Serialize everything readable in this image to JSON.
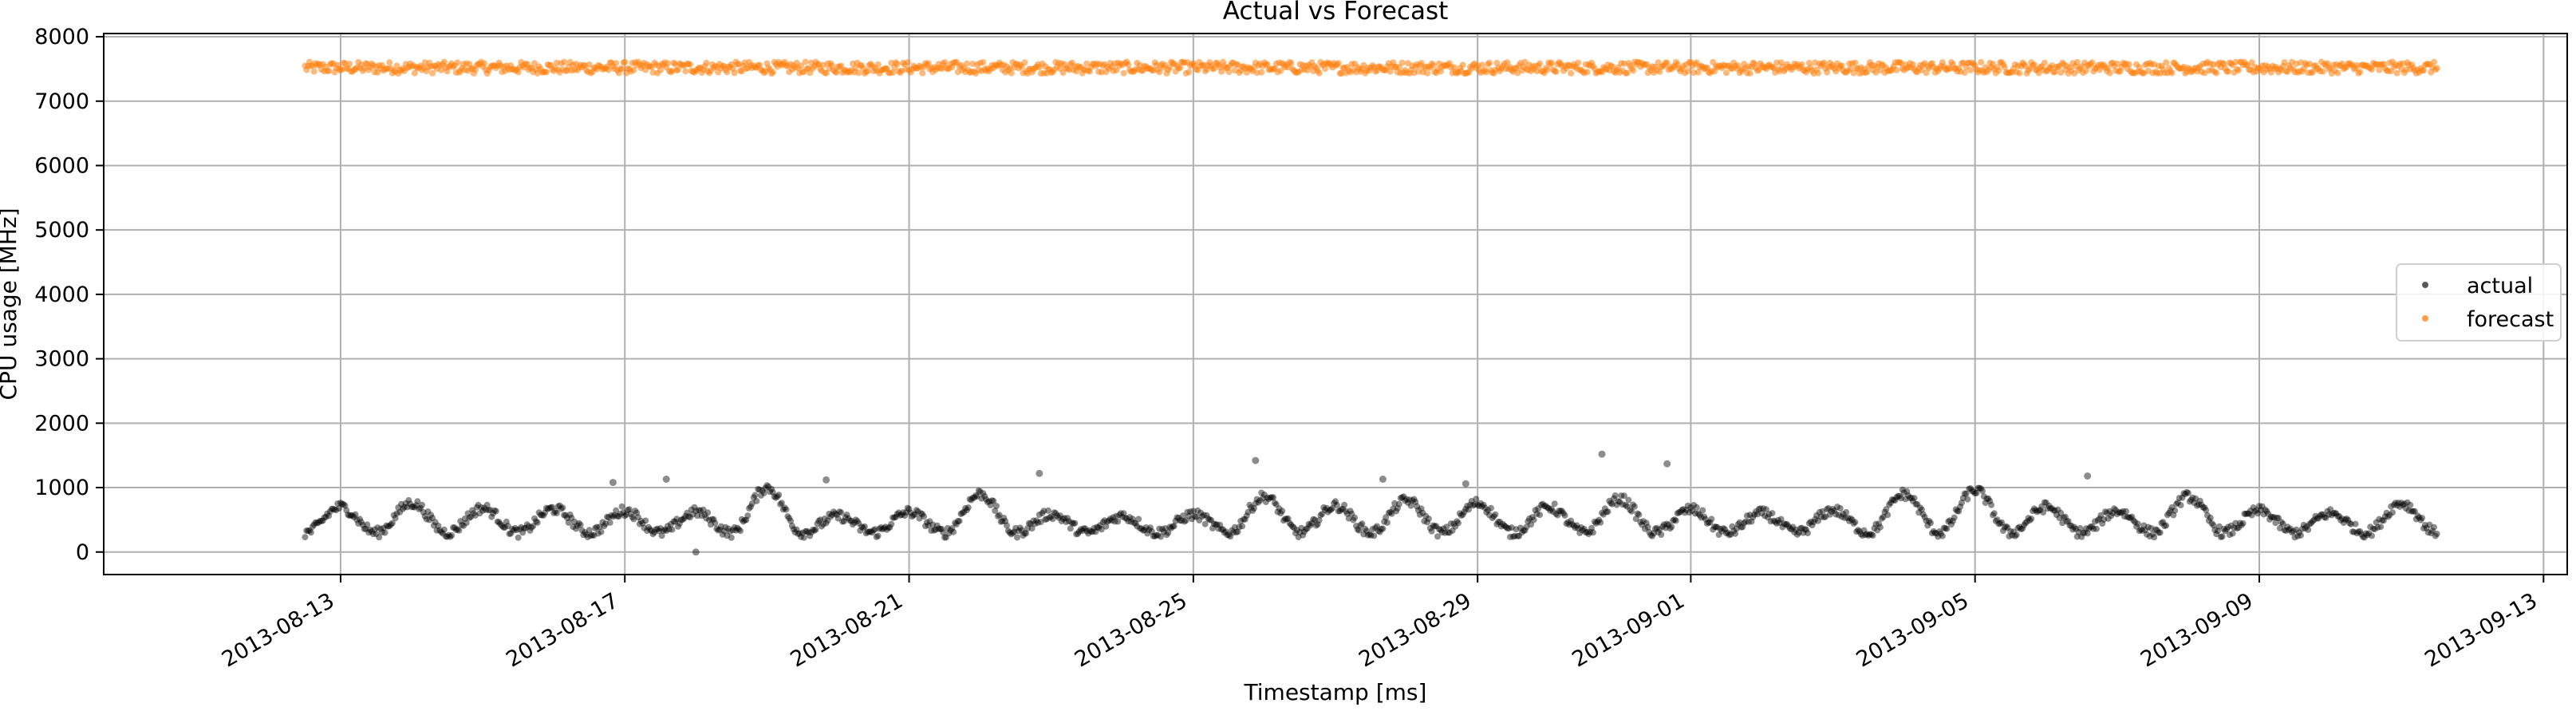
{
  "chart_data": {
    "type": "scatter",
    "title": "Actual vs Forecast",
    "xlabel": "Timestamp [ms]",
    "ylabel": "CPU usage [MHz]",
    "x_type": "date",
    "xlim": [
      "2013-08-09T16:00:00",
      "2013-09-13T08:00:00"
    ],
    "ylim": [
      -350,
      8050
    ],
    "xticks": [
      "2013-08-13",
      "2013-08-17",
      "2013-08-21",
      "2013-08-25",
      "2013-08-29",
      "2013-09-01",
      "2013-09-05",
      "2013-09-09",
      "2013-09-13"
    ],
    "yticks": [
      0,
      1000,
      2000,
      3000,
      4000,
      5000,
      6000,
      7000,
      8000
    ],
    "grid": true,
    "legend_position": "center-right",
    "data_range": [
      "2013-08-12T12:00:00",
      "2013-09-11T12:00:00"
    ],
    "series": [
      {
        "name": "actual",
        "color": "#000000",
        "marker": "dot",
        "alpha": 0.45,
        "daily_pattern": {
          "peak_values": [
            700,
            760,
            680,
            670,
            640,
            620,
            1000,
            560,
            620,
            900,
            590,
            560,
            580,
            860,
            720,
            800,
            760,
            700,
            820,
            660,
            600,
            650,
            900,
            960,
            700,
            640,
            860,
            640,
            600,
            760,
            730
          ],
          "trough_value": 300
        },
        "outliers": [
          {
            "x": "2013-08-18T00:00:00",
            "y": 0
          },
          {
            "x": "2013-08-25T21:00:00",
            "y": 1420
          },
          {
            "x": "2013-08-30T18:00:00",
            "y": 1520
          },
          {
            "x": "2013-08-31T16:00:00",
            "y": 1370
          },
          {
            "x": "2013-08-22T20:00:00",
            "y": 1220
          },
          {
            "x": "2013-09-06T14:00:00",
            "y": 1180
          },
          {
            "x": "2013-08-16T20:00:00",
            "y": 1080
          },
          {
            "x": "2013-08-17T14:00:00",
            "y": 1130
          },
          {
            "x": "2013-08-19T20:00:00",
            "y": 1120
          },
          {
            "x": "2013-08-27T16:00:00",
            "y": 1130
          },
          {
            "x": "2013-08-28T20:00:00",
            "y": 1060
          }
        ]
      },
      {
        "name": "forecast",
        "color": "#ff7f0e",
        "marker": "dot",
        "alpha": 0.55,
        "level": 7520,
        "spread": 90
      }
    ]
  }
}
